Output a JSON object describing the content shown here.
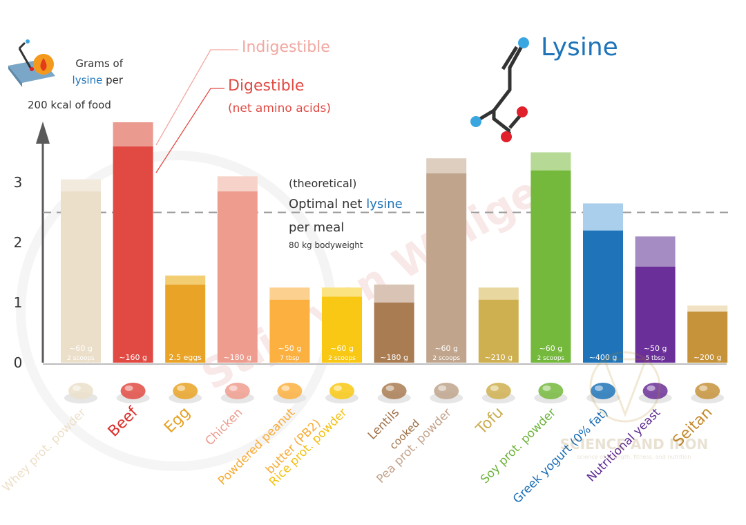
{
  "colors": {
    "axis": "#5a5a5a",
    "optimal_line": "#9a9a9a",
    "lysine_blue": "#1f74b9",
    "indigestible": "#f2a7a0",
    "digestible": "#e04a43",
    "atom_blue": "#3aa6e0",
    "atom_red": "#e0202a",
    "chain": "#333333"
  },
  "header": {
    "ylabel_line1": "Grams of",
    "ylabel_line2a": "lysine",
    "ylabel_line2b": " per",
    "ylabel_line3": "200 kcal of food",
    "legend_indigestible": "Indigestible",
    "legend_digestible": "Digestible",
    "legend_digestible_sub": "(net amino acids)",
    "molecule_title": "Lysine",
    "optimal_line1": "(theoretical)",
    "optimal_line2a": "Optimal net ",
    "optimal_line2b": "lysine",
    "optimal_line3": "per meal",
    "optimal_line4": "80 kg bodyweight",
    "watermark": "Stijn van Willigen",
    "logo_text": "SCIENCE AND IRON",
    "logo_sub": "science of strength, fitness, and nutrition"
  },
  "chart_data": {
    "type": "bar",
    "stacked": true,
    "ylabel": "Grams of lysine per 200 kcal of food",
    "ylim": [
      0,
      4
    ],
    "yticks": [
      0,
      1,
      2,
      3
    ],
    "optimal_net_lysine": 2.5,
    "series": [
      {
        "name": "Digestible",
        "values": [
          2.85,
          3.6,
          1.3,
          2.85,
          1.05,
          1.1,
          1.0,
          3.15,
          1.05,
          3.2,
          2.2,
          1.6,
          0.85
        ]
      },
      {
        "name": "Indigestible",
        "values": [
          0.2,
          0.4,
          0.15,
          0.25,
          0.2,
          0.15,
          0.3,
          0.25,
          0.2,
          0.3,
          0.45,
          0.5,
          0.1
        ]
      }
    ],
    "categories": [
      {
        "label": "Whey prot. powder",
        "sub": "",
        "amount": "~60 g",
        "amount2": "2 scoops",
        "dig": "#ebdfca",
        "ind": "#f2eadc",
        "lab": "#eddfc8"
      },
      {
        "label": "Beef",
        "sub": "",
        "amount": "~160 g",
        "amount2": "",
        "dig": "#e04a43",
        "ind": "#eb9a90",
        "lab": "#d9302c"
      },
      {
        "label": "Egg",
        "sub": "",
        "amount": "2.5 eggs",
        "amount2": "",
        "dig": "#e9a326",
        "ind": "#f2cd72",
        "lab": "#e6a020"
      },
      {
        "label": "Chicken",
        "sub": "",
        "amount": "~180 g",
        "amount2": "",
        "dig": "#ee9c8e",
        "ind": "#f6d2c8",
        "lab": "#ec9a8c"
      },
      {
        "label": "Powdered peanut",
        "sub": "butter (PB2)",
        "amount": "~50 g",
        "amount2": "7 tbsp",
        "dig": "#fbb040",
        "ind": "#fcd08e",
        "lab": "#f8aa34"
      },
      {
        "label": "Rice prot. powder",
        "sub": "",
        "amount": "~60 g",
        "amount2": "2 scoops",
        "dig": "#f9c814",
        "ind": "#fbe382",
        "lab": "#f4c010"
      },
      {
        "label": "Lentils",
        "sub": "cooked",
        "amount": "~180 g",
        "amount2": "",
        "dig": "#a97c52",
        "ind": "#d9c3b4",
        "lab": "#9e7048"
      },
      {
        "label": "Pea prot. powder",
        "sub": "",
        "amount": "~60 g",
        "amount2": "2 scoops",
        "dig": "#c0a48c",
        "ind": "#ddcec0",
        "lab": "#c3a38c"
      },
      {
        "label": "Tofu",
        "sub": "",
        "amount": "~210 g",
        "amount2": "",
        "dig": "#cfb050",
        "ind": "#e8d8a0",
        "lab": "#c9ad50"
      },
      {
        "label": "Soy prot. powder",
        "sub": "",
        "amount": "~60 g",
        "amount2": "2 scoops",
        "dig": "#74b83c",
        "ind": "#b6d996",
        "lab": "#6cb33a"
      },
      {
        "label": "Greek yogurt (0% fat)",
        "sub": "",
        "amount": "~400 g",
        "amount2": "",
        "dig": "#1f74b9",
        "ind": "#a9cfec",
        "lab": "#1a6db5"
      },
      {
        "label": "Nutritional yeast",
        "sub": "",
        "amount": "~50 g",
        "amount2": "5 tbsp",
        "dig": "#6a2f98",
        "ind": "#a58cc2",
        "lab": "#5e2a92"
      },
      {
        "label": "Seitan",
        "sub": "",
        "amount": "~200 g",
        "amount2": "",
        "dig": "#c6923a",
        "ind": "#f0e2c2",
        "lab": "#c58a30"
      }
    ],
    "food_icons": [
      "shaker-scoop-icon",
      "steak-icon",
      "fried-egg-icon",
      "chicken-breast-icon",
      "peanut-butter-jar-icon",
      "rice-bowl-icon",
      "lentils-icon",
      "pea-scoop-icon",
      "tofu-icon",
      "soy-scoop-icon",
      "yogurt-cup-icon",
      "yeast-flakes-icon",
      "seitan-slices-icon"
    ]
  }
}
